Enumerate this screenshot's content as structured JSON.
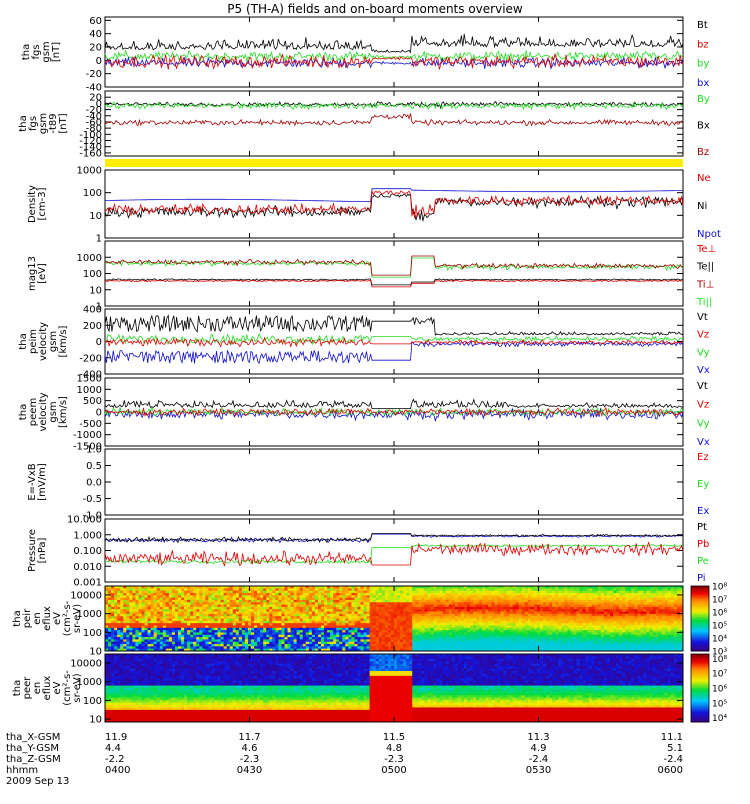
{
  "title": "P5 (TH-A) fields and on-board moments overview",
  "colors": {
    "black": "#000000",
    "red": "#e00000",
    "green": "#22dd22",
    "blue": "#1010d0",
    "darkred": "#a00000",
    "yellow": "#ffee00"
  },
  "chart_data": [
    {
      "type": "line",
      "id": "fgs",
      "ylabel": [
        "tha",
        "fgs",
        "gsm",
        "[nT]"
      ],
      "ylim": [
        -40,
        65
      ],
      "ticks": [
        "60",
        "40",
        "20",
        "0",
        "-20",
        "-40"
      ],
      "legend": [
        {
          "name": "Bt",
          "color": "black"
        },
        {
          "name": "bz",
          "color": "red"
        },
        {
          "name": "by",
          "color": "green"
        },
        {
          "name": "bx",
          "color": "blue"
        }
      ]
    },
    {
      "type": "line",
      "id": "t89",
      "ylabel": [
        "tha",
        "fgs",
        "gsm",
        "-t89",
        "[nT]"
      ],
      "ylim": [
        -170,
        40
      ],
      "ticks": [
        "20",
        "0",
        "-20",
        "-40",
        "-60",
        "-80",
        "-100",
        "-120",
        "-140",
        "-160"
      ],
      "legend": [
        {
          "name": "By",
          "color": "green"
        },
        {
          "name": "Bx",
          "color": "black"
        },
        {
          "name": "Bz",
          "color": "darkred"
        }
      ]
    },
    {
      "type": "line",
      "id": "density",
      "scale": "log",
      "ylabel": [
        "Density",
        "[cm-3]"
      ],
      "ylim": [
        1,
        1000
      ],
      "ticks": [
        "1000",
        "100",
        "10",
        "1"
      ],
      "legend": [
        {
          "name": "Ne",
          "color": "red"
        },
        {
          "name": "Ni",
          "color": "black"
        },
        {
          "name": "Npot",
          "color": "blue"
        }
      ]
    },
    {
      "type": "line",
      "id": "temp",
      "scale": "log",
      "ylabel": [
        "mag13",
        "[eV]"
      ],
      "ylim": [
        1,
        10000
      ],
      "ticks": [
        "1000",
        "100",
        "10",
        "1"
      ],
      "legend": [
        {
          "name": "Te⊥",
          "color": "red"
        },
        {
          "name": "Te||",
          "color": "black"
        },
        {
          "name": "Ti⊥",
          "color": "darkred"
        },
        {
          "name": "Ti||",
          "color": "green"
        }
      ]
    },
    {
      "type": "line",
      "id": "peim",
      "ylabel": [
        "tha",
        "peim",
        "velocity",
        "gsm",
        "[km/s]"
      ],
      "ylim": [
        -400,
        400
      ],
      "ticks": [
        "400",
        "200",
        "0",
        "-200",
        "-400"
      ],
      "legend": [
        {
          "name": "Vt",
          "color": "black"
        },
        {
          "name": "Vz",
          "color": "red"
        },
        {
          "name": "Vy",
          "color": "green"
        },
        {
          "name": "Vx",
          "color": "blue"
        }
      ]
    },
    {
      "type": "line",
      "id": "peem",
      "ylabel": [
        "tha",
        "peem",
        "velocity",
        "gsm",
        "[km/s]"
      ],
      "ylim": [
        -1500,
        1500
      ],
      "ticks": [
        "1500",
        "1000",
        "500",
        "0",
        "-500",
        "-1000",
        "-1500"
      ],
      "legend": [
        {
          "name": "Vt",
          "color": "black"
        },
        {
          "name": "Vz",
          "color": "red"
        },
        {
          "name": "Vy",
          "color": "green"
        },
        {
          "name": "Vx",
          "color": "blue"
        }
      ]
    },
    {
      "type": "line",
      "id": "efield",
      "ylabel": [
        "E=-VxB",
        "[mV/m]"
      ],
      "ylim": [
        -1,
        1
      ],
      "ticks": [
        "1.0",
        "0.5",
        "0.0",
        "-0.5",
        "-1.0"
      ],
      "legend": [
        {
          "name": "Ez",
          "color": "red"
        },
        {
          "name": "Ey",
          "color": "green"
        },
        {
          "name": "Ex",
          "color": "blue"
        }
      ]
    },
    {
      "type": "line",
      "id": "pressure",
      "scale": "log",
      "ylabel": [
        "Pressure",
        "[nPa]"
      ],
      "ylim": [
        0.001,
        10
      ],
      "ticks": [
        "10.000",
        "1.000",
        "0.100",
        "0.010",
        "0.001"
      ],
      "legend": [
        {
          "name": "Pt",
          "color": "black"
        },
        {
          "name": "Pb",
          "color": "red"
        },
        {
          "name": "Pe",
          "color": "green"
        },
        {
          "name": "Pi",
          "color": "blue"
        }
      ]
    },
    {
      "type": "heatmap",
      "id": "peir",
      "scale": "log",
      "ylabel": [
        "tha",
        "peir",
        "en",
        "eflux",
        "eV",
        "(cm²-s-",
        "sr-eV)"
      ],
      "ylim": [
        10,
        30000
      ],
      "ticks": [
        "10000",
        "1000",
        "100",
        "10"
      ],
      "colorbar": {
        "ticks": [
          "10⁸",
          "10⁷",
          "10⁶",
          "10⁵",
          "10⁴",
          "10³"
        ],
        "range_exp": [
          3,
          8
        ]
      }
    },
    {
      "type": "heatmap",
      "id": "peer",
      "scale": "log",
      "ylabel": [
        "tha",
        "peer",
        "en",
        "eflux",
        "eV",
        "(cm²-s-",
        "sr-eV)"
      ],
      "ylim": [
        7,
        30000
      ],
      "ticks": [
        "10000",
        "1000",
        "100",
        "10"
      ],
      "colorbar": {
        "ticks": [
          "10⁸",
          "10⁷",
          "10⁶",
          "10⁵",
          "10⁴"
        ],
        "range_exp": [
          3.7,
          8.3
        ]
      }
    }
  ],
  "x_axis": {
    "rows": [
      {
        "label": "tha_X-GSM",
        "values": [
          "11.9",
          "11.7",
          "11.5",
          "11.3",
          "11.1"
        ]
      },
      {
        "label": "tha_Y-GSM",
        "values": [
          "4.4",
          "4.6",
          "4.8",
          "4.9",
          "5.1"
        ]
      },
      {
        "label": "tha_Z-GSM",
        "values": [
          "-2.2",
          "-2.3",
          "-2.3",
          "-2.4",
          "-2.4"
        ]
      },
      {
        "label": "hhmm",
        "values": [
          "0400",
          "0430",
          "0500",
          "0530",
          "0600"
        ]
      }
    ],
    "date": "2009 Sep 13",
    "range_min": [
      0,
      120
    ],
    "tick_min": [
      0,
      30,
      60,
      90,
      120
    ]
  },
  "epochs": {
    "quiet_end_min": 0.46,
    "pulse_start": 0.46,
    "pulse_end": 0.53,
    "dip_start": 0.53,
    "dip_end": 0.57
  }
}
